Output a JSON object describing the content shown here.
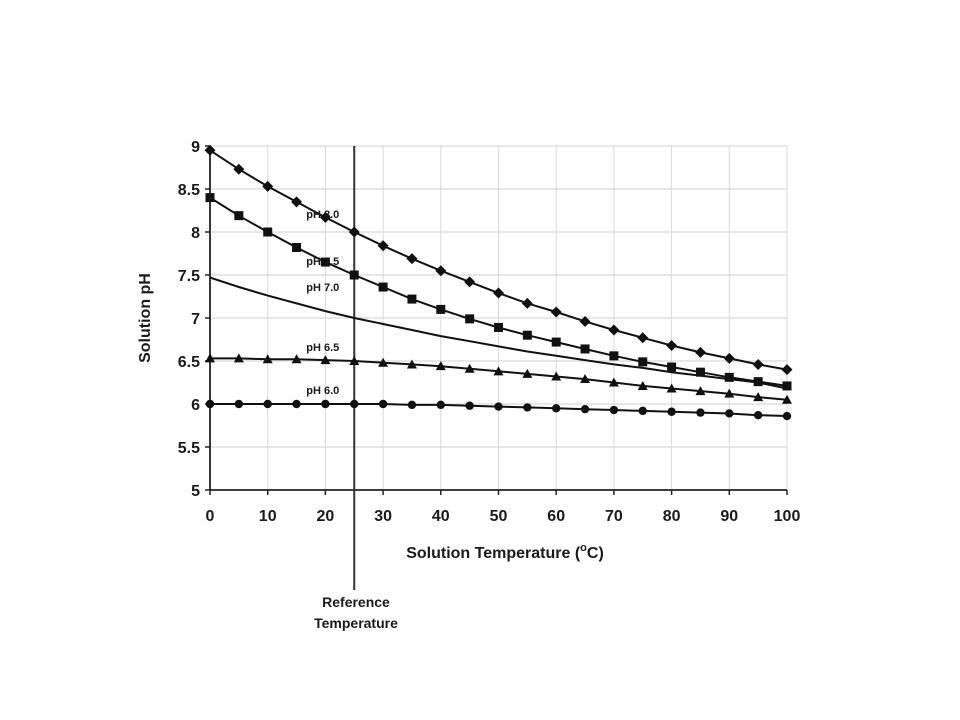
{
  "chart_data": {
    "type": "line",
    "xlabel": "Solution Temperature (",
    "xlabel_unit_sup": "o",
    "xlabel_unit_tail": "C)",
    "ylabel": "Solution pH",
    "xlim": [
      0,
      100
    ],
    "ylim": [
      5,
      9
    ],
    "x_ticks": [
      "0",
      "10",
      "20",
      "30",
      "40",
      "50",
      "60",
      "70",
      "80",
      "90",
      "100"
    ],
    "y_ticks": [
      "5",
      "5.5",
      "6",
      "6.5",
      "7",
      "7.5",
      "8",
      "8.5",
      "9"
    ],
    "grid": true,
    "x": [
      0,
      5,
      10,
      15,
      20,
      25,
      30,
      35,
      40,
      45,
      50,
      55,
      60,
      65,
      70,
      75,
      80,
      85,
      90,
      95,
      100
    ],
    "series": [
      {
        "name": "pH 8.0",
        "marker": "diamond",
        "values": [
          8.95,
          8.73,
          8.53,
          8.35,
          8.17,
          8.0,
          7.84,
          7.69,
          7.55,
          7.42,
          7.29,
          7.17,
          7.07,
          6.96,
          6.86,
          6.77,
          6.68,
          6.6,
          6.53,
          6.46,
          6.4
        ]
      },
      {
        "name": "pH 7.5",
        "marker": "square",
        "values": [
          8.4,
          8.19,
          8.0,
          7.82,
          7.65,
          7.5,
          7.36,
          7.22,
          7.1,
          6.99,
          6.89,
          6.8,
          6.72,
          6.64,
          6.56,
          6.49,
          6.43,
          6.37,
          6.31,
          6.26,
          6.21
        ]
      },
      {
        "name": "pH 7.0",
        "marker": "none",
        "values": [
          7.47,
          7.36,
          7.26,
          7.17,
          7.08,
          7.0,
          6.93,
          6.86,
          6.79,
          6.73,
          6.67,
          6.61,
          6.56,
          6.51,
          6.46,
          6.42,
          6.37,
          6.33,
          6.29,
          6.25,
          6.18
        ]
      },
      {
        "name": "pH 6.5",
        "marker": "triangle",
        "values": [
          6.53,
          6.53,
          6.52,
          6.52,
          6.51,
          6.5,
          6.48,
          6.46,
          6.44,
          6.41,
          6.38,
          6.35,
          6.32,
          6.29,
          6.25,
          6.21,
          6.18,
          6.15,
          6.12,
          6.08,
          6.05
        ]
      },
      {
        "name": "pH 6.0",
        "marker": "circle",
        "values": [
          6.0,
          6.0,
          6.0,
          6.0,
          6.0,
          6.0,
          6.0,
          5.99,
          5.99,
          5.98,
          5.97,
          5.96,
          5.95,
          5.94,
          5.93,
          5.92,
          5.91,
          5.9,
          5.89,
          5.87,
          5.86
        ]
      }
    ],
    "reference_line": {
      "x": 25,
      "label_line1": "Reference",
      "label_line2": "Temperature"
    }
  }
}
